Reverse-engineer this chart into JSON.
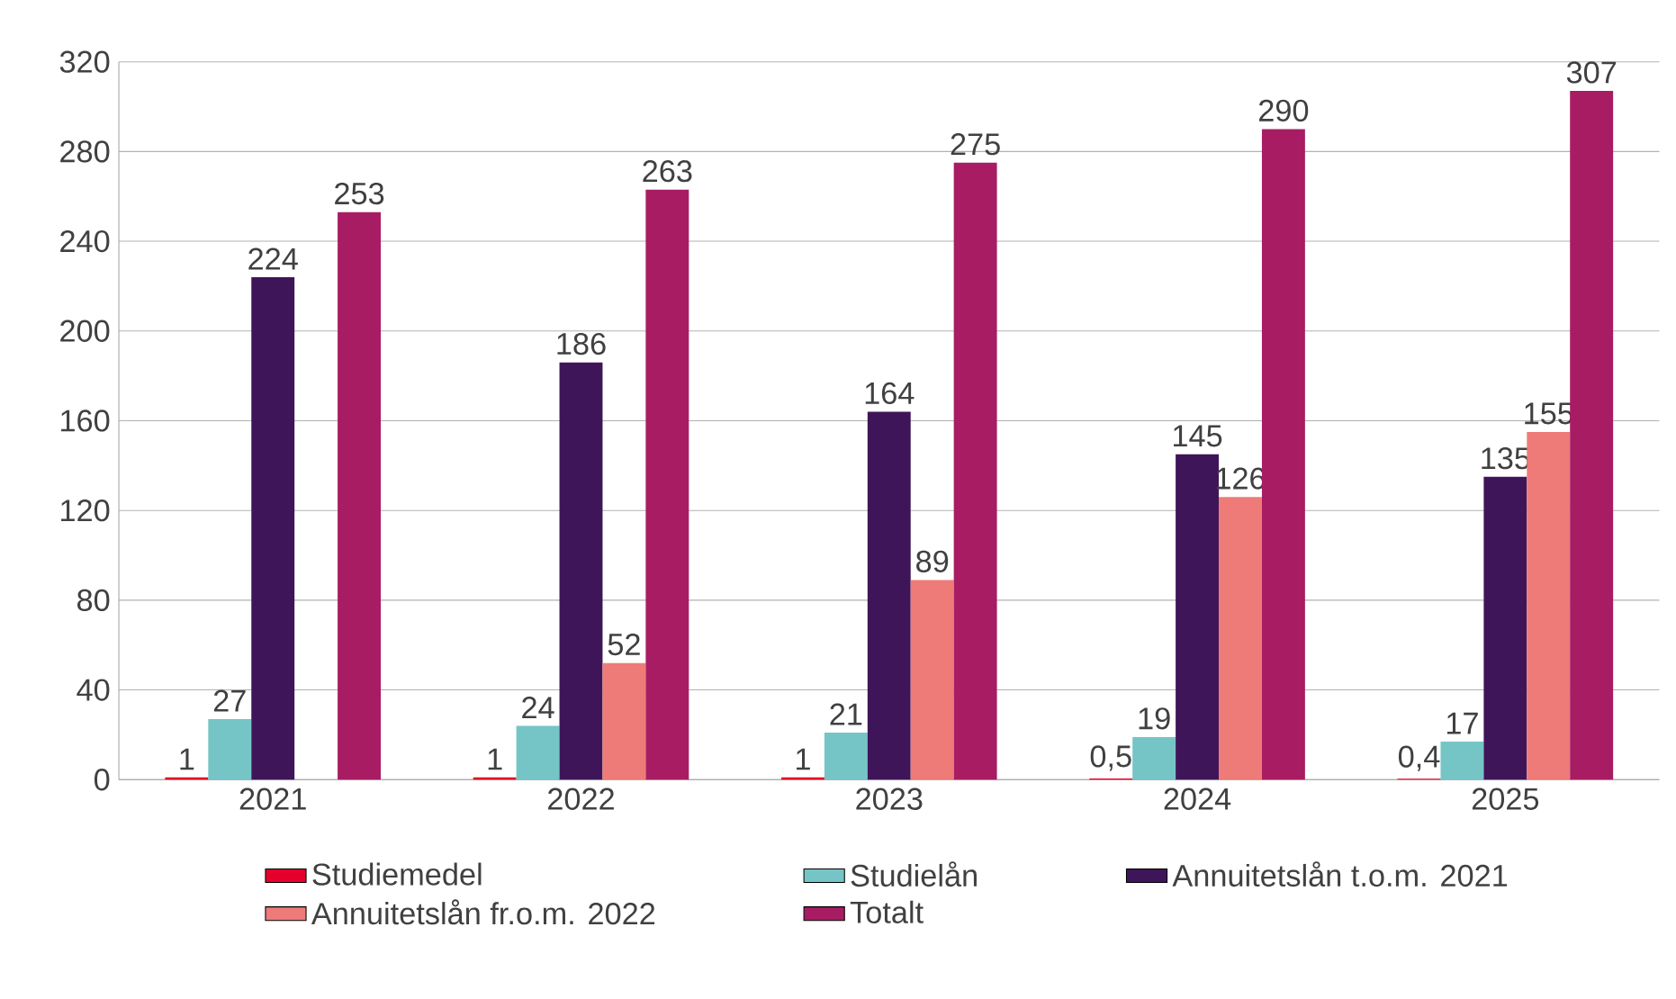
{
  "chart_data": {
    "type": "bar",
    "categories": [
      "2021",
      "2022",
      "2023",
      "2024",
      "2025"
    ],
    "series": [
      {
        "name": "Studiemedel",
        "color": "#e4002b",
        "values": [
          1,
          1,
          1,
          0.5,
          0.4
        ],
        "value_labels": [
          "1",
          "1",
          "1",
          "0,5",
          "0,4"
        ]
      },
      {
        "name": "Studielån",
        "color": "#76c5c6",
        "values": [
          27,
          24,
          21,
          19,
          17
        ],
        "value_labels": [
          "27",
          "24",
          "21",
          "19",
          "17"
        ]
      },
      {
        "name": "Annuitetslån t.o.m. 2021",
        "color": "#3f1559",
        "values": [
          224,
          186,
          164,
          145,
          135
        ],
        "value_labels": [
          "224",
          "186",
          "164",
          "145",
          "135"
        ]
      },
      {
        "name": "Annuitetslån fr.o.m. 2022",
        "color": "#ee7b78",
        "values": [
          null,
          52,
          89,
          126,
          155
        ],
        "value_labels": [
          null,
          "52",
          "89",
          "126",
          "155"
        ]
      },
      {
        "name": "Totalt",
        "color": "#a81c64",
        "values": [
          253,
          263,
          275,
          290,
          307
        ],
        "value_labels": [
          "253",
          "263",
          "275",
          "290",
          "307"
        ]
      }
    ],
    "ylim": [
      0,
      320
    ],
    "yticks": [
      0,
      40,
      80,
      120,
      160,
      200,
      240,
      280,
      320
    ],
    "grid": "y",
    "legend": "bottom"
  }
}
